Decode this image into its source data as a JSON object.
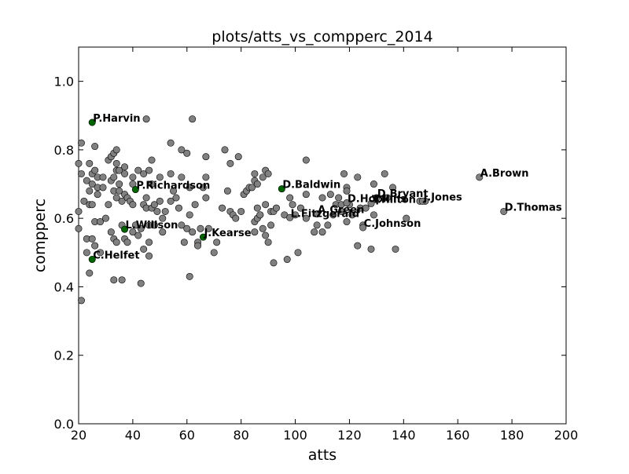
{
  "chart_data": {
    "type": "scatter",
    "title": "plots/atts_vs_compperc_2014",
    "xlabel": "atts",
    "ylabel": "compperc",
    "xlim": [
      20,
      200
    ],
    "ylim": [
      0.0,
      1.1
    ],
    "xticks": [
      20,
      40,
      60,
      80,
      100,
      120,
      140,
      160,
      180,
      200
    ],
    "yticks": [
      0.0,
      0.2,
      0.4,
      0.6,
      0.8,
      1.0
    ],
    "xtick_labels": [
      "20",
      "40",
      "60",
      "80",
      "100",
      "120",
      "140",
      "160",
      "180",
      "200"
    ],
    "ytick_labels": [
      "0.0",
      "0.2",
      "0.4",
      "0.6",
      "0.8",
      "1.0"
    ],
    "grid": false,
    "colors": {
      "default": "#808080",
      "highlight": "#006400"
    },
    "highlighted": [
      {
        "name": "P.Harvin",
        "x": 25,
        "y": 0.88
      },
      {
        "name": "P.Richardson",
        "x": 41,
        "y": 0.684
      },
      {
        "name": "D.Baldwin",
        "x": 95,
        "y": 0.686
      },
      {
        "name": "L.Willson",
        "x": 37,
        "y": 0.568
      },
      {
        "name": "J.Kearse",
        "x": 66,
        "y": 0.545
      },
      {
        "name": "C.Helfet",
        "x": 25,
        "y": 0.48
      }
    ],
    "labeled_gray": [
      {
        "name": "A.Brown",
        "x": 168,
        "y": 0.72
      },
      {
        "name": "D.Thomas",
        "x": 177,
        "y": 0.62
      },
      {
        "name": "J.Jones",
        "x": 147,
        "y": 0.65
      },
      {
        "name": "D.Bryant",
        "x": 130,
        "y": 0.66
      },
      {
        "name": "D.Hopkins",
        "x": 119,
        "y": 0.645
      },
      {
        "name": "T.Hilton",
        "x": 128,
        "y": 0.643
      },
      {
        "name": "A.Green",
        "x": 108,
        "y": 0.613
      },
      {
        "name": "L.Fitzgerald",
        "x": 98,
        "y": 0.602
      },
      {
        "name": "C.Johnson",
        "x": 125,
        "y": 0.573
      }
    ],
    "points": [
      [
        20,
        0.76
      ],
      [
        20,
        0.62
      ],
      [
        20,
        0.57
      ],
      [
        21,
        0.82
      ],
      [
        21,
        0.36
      ],
      [
        21,
        0.73
      ],
      [
        22,
        0.65
      ],
      [
        23,
        0.71
      ],
      [
        23,
        0.54
      ],
      [
        23,
        0.5
      ],
      [
        24,
        0.64
      ],
      [
        24,
        0.68
      ],
      [
        24,
        0.76
      ],
      [
        24,
        0.44
      ],
      [
        25,
        0.73
      ],
      [
        25,
        0.54
      ],
      [
        25,
        0.7
      ],
      [
        25,
        0.64
      ],
      [
        26,
        0.81
      ],
      [
        26,
        0.74
      ],
      [
        26,
        0.52
      ],
      [
        26,
        0.59
      ],
      [
        27,
        0.67
      ],
      [
        27,
        0.72
      ],
      [
        27,
        0.69
      ],
      [
        28,
        0.5
      ],
      [
        28,
        0.59
      ],
      [
        29,
        0.72
      ],
      [
        29,
        0.69
      ],
      [
        30,
        0.6
      ],
      [
        31,
        0.64
      ],
      [
        31,
        0.77
      ],
      [
        32,
        0.71
      ],
      [
        32,
        0.56
      ],
      [
        32,
        0.78
      ],
      [
        33,
        0.79
      ],
      [
        33,
        0.72
      ],
      [
        33,
        0.68
      ],
      [
        33,
        0.54
      ],
      [
        33,
        0.42
      ],
      [
        34,
        0.8
      ],
      [
        34,
        0.76
      ],
      [
        34,
        0.74
      ],
      [
        34,
        0.66
      ],
      [
        34,
        0.53
      ],
      [
        35,
        0.7
      ],
      [
        35,
        0.68
      ],
      [
        35,
        0.74
      ],
      [
        36,
        0.42
      ],
      [
        36,
        0.58
      ],
      [
        36,
        0.65
      ],
      [
        37,
        0.75
      ],
      [
        37,
        0.73
      ],
      [
        37,
        0.67
      ],
      [
        37,
        0.54
      ],
      [
        38,
        0.53
      ],
      [
        38,
        0.66
      ],
      [
        39,
        0.65
      ],
      [
        40,
        0.7
      ],
      [
        40,
        0.72
      ],
      [
        40,
        0.64
      ],
      [
        40,
        0.56
      ],
      [
        41,
        0.58
      ],
      [
        42,
        0.74
      ],
      [
        42,
        0.55
      ],
      [
        43,
        0.57
      ],
      [
        43,
        0.41
      ],
      [
        44,
        0.73
      ],
      [
        44,
        0.64
      ],
      [
        44,
        0.51
      ],
      [
        45,
        0.89
      ],
      [
        45,
        0.66
      ],
      [
        45,
        0.63
      ],
      [
        46,
        0.74
      ],
      [
        46,
        0.58
      ],
      [
        46,
        0.49
      ],
      [
        46,
        0.53
      ],
      [
        47,
        0.77
      ],
      [
        47,
        0.7
      ],
      [
        47,
        0.63
      ],
      [
        48,
        0.64
      ],
      [
        48,
        0.58
      ],
      [
        49,
        0.62
      ],
      [
        50,
        0.72
      ],
      [
        50,
        0.65
      ],
      [
        51,
        0.56
      ],
      [
        51,
        0.6
      ],
      [
        52,
        0.62
      ],
      [
        54,
        0.82
      ],
      [
        54,
        0.73
      ],
      [
        54,
        0.65
      ],
      [
        55,
        0.68
      ],
      [
        56,
        0.66
      ],
      [
        57,
        0.63
      ],
      [
        58,
        0.72
      ],
      [
        58,
        0.8
      ],
      [
        58,
        0.58
      ],
      [
        59,
        0.53
      ],
      [
        60,
        0.79
      ],
      [
        60,
        0.57
      ],
      [
        61,
        0.69
      ],
      [
        61,
        0.61
      ],
      [
        61,
        0.43
      ],
      [
        62,
        0.89
      ],
      [
        62,
        0.56
      ],
      [
        63,
        0.64
      ],
      [
        64,
        0.53
      ],
      [
        64,
        0.52
      ],
      [
        65,
        0.57
      ],
      [
        66,
        0.69
      ],
      [
        67,
        0.78
      ],
      [
        67,
        0.72
      ],
      [
        67,
        0.66
      ],
      [
        68,
        0.57
      ],
      [
        70,
        0.5
      ],
      [
        71,
        0.53
      ],
      [
        73,
        0.63
      ],
      [
        74,
        0.8
      ],
      [
        75,
        0.68
      ],
      [
        76,
        0.62
      ],
      [
        76,
        0.76
      ],
      [
        77,
        0.61
      ],
      [
        78,
        0.6
      ],
      [
        79,
        0.78
      ],
      [
        80,
        0.62
      ],
      [
        81,
        0.67
      ],
      [
        82,
        0.68
      ],
      [
        83,
        0.69
      ],
      [
        84,
        0.69
      ],
      [
        85,
        0.73
      ],
      [
        85,
        0.71
      ],
      [
        85,
        0.59
      ],
      [
        85,
        0.56
      ],
      [
        86,
        0.63
      ],
      [
        86,
        0.6
      ],
      [
        86,
        0.7
      ],
      [
        87,
        0.61
      ],
      [
        87,
        0.61
      ],
      [
        88,
        0.57
      ],
      [
        88,
        0.72
      ],
      [
        89,
        0.64
      ],
      [
        89,
        0.74
      ],
      [
        89,
        0.55
      ],
      [
        90,
        0.73
      ],
      [
        90,
        0.53
      ],
      [
        91,
        0.62
      ],
      [
        91,
        0.58
      ],
      [
        92,
        0.47
      ],
      [
        92,
        0.62
      ],
      [
        93,
        0.63
      ],
      [
        96,
        0.61
      ],
      [
        97,
        0.48
      ],
      [
        98,
        0.66
      ],
      [
        99,
        0.64
      ],
      [
        100,
        0.61
      ],
      [
        101,
        0.5
      ],
      [
        102,
        0.63
      ],
      [
        104,
        0.77
      ],
      [
        104,
        0.67
      ],
      [
        104,
        0.6
      ],
      [
        107,
        0.56
      ],
      [
        108,
        0.58
      ],
      [
        110,
        0.66
      ],
      [
        110,
        0.56
      ],
      [
        112,
        0.58
      ],
      [
        113,
        0.67
      ],
      [
        114,
        0.61
      ],
      [
        115,
        0.64
      ],
      [
        116,
        0.66
      ],
      [
        117,
        0.64
      ],
      [
        117,
        0.62
      ],
      [
        118,
        0.73
      ],
      [
        119,
        0.69
      ],
      [
        119,
        0.68
      ],
      [
        119,
        0.59
      ],
      [
        120,
        0.64
      ],
      [
        121,
        0.61
      ],
      [
        123,
        0.72
      ],
      [
        123,
        0.52
      ],
      [
        124,
        0.63
      ],
      [
        125,
        0.58
      ],
      [
        126,
        0.63
      ],
      [
        128,
        0.51
      ],
      [
        129,
        0.7
      ],
      [
        129,
        0.61
      ],
      [
        133,
        0.73
      ],
      [
        134,
        0.66
      ],
      [
        136,
        0.69
      ],
      [
        137,
        0.51
      ],
      [
        141,
        0.6
      ],
      [
        146,
        0.65
      ],
      [
        148,
        0.65
      ]
    ]
  }
}
